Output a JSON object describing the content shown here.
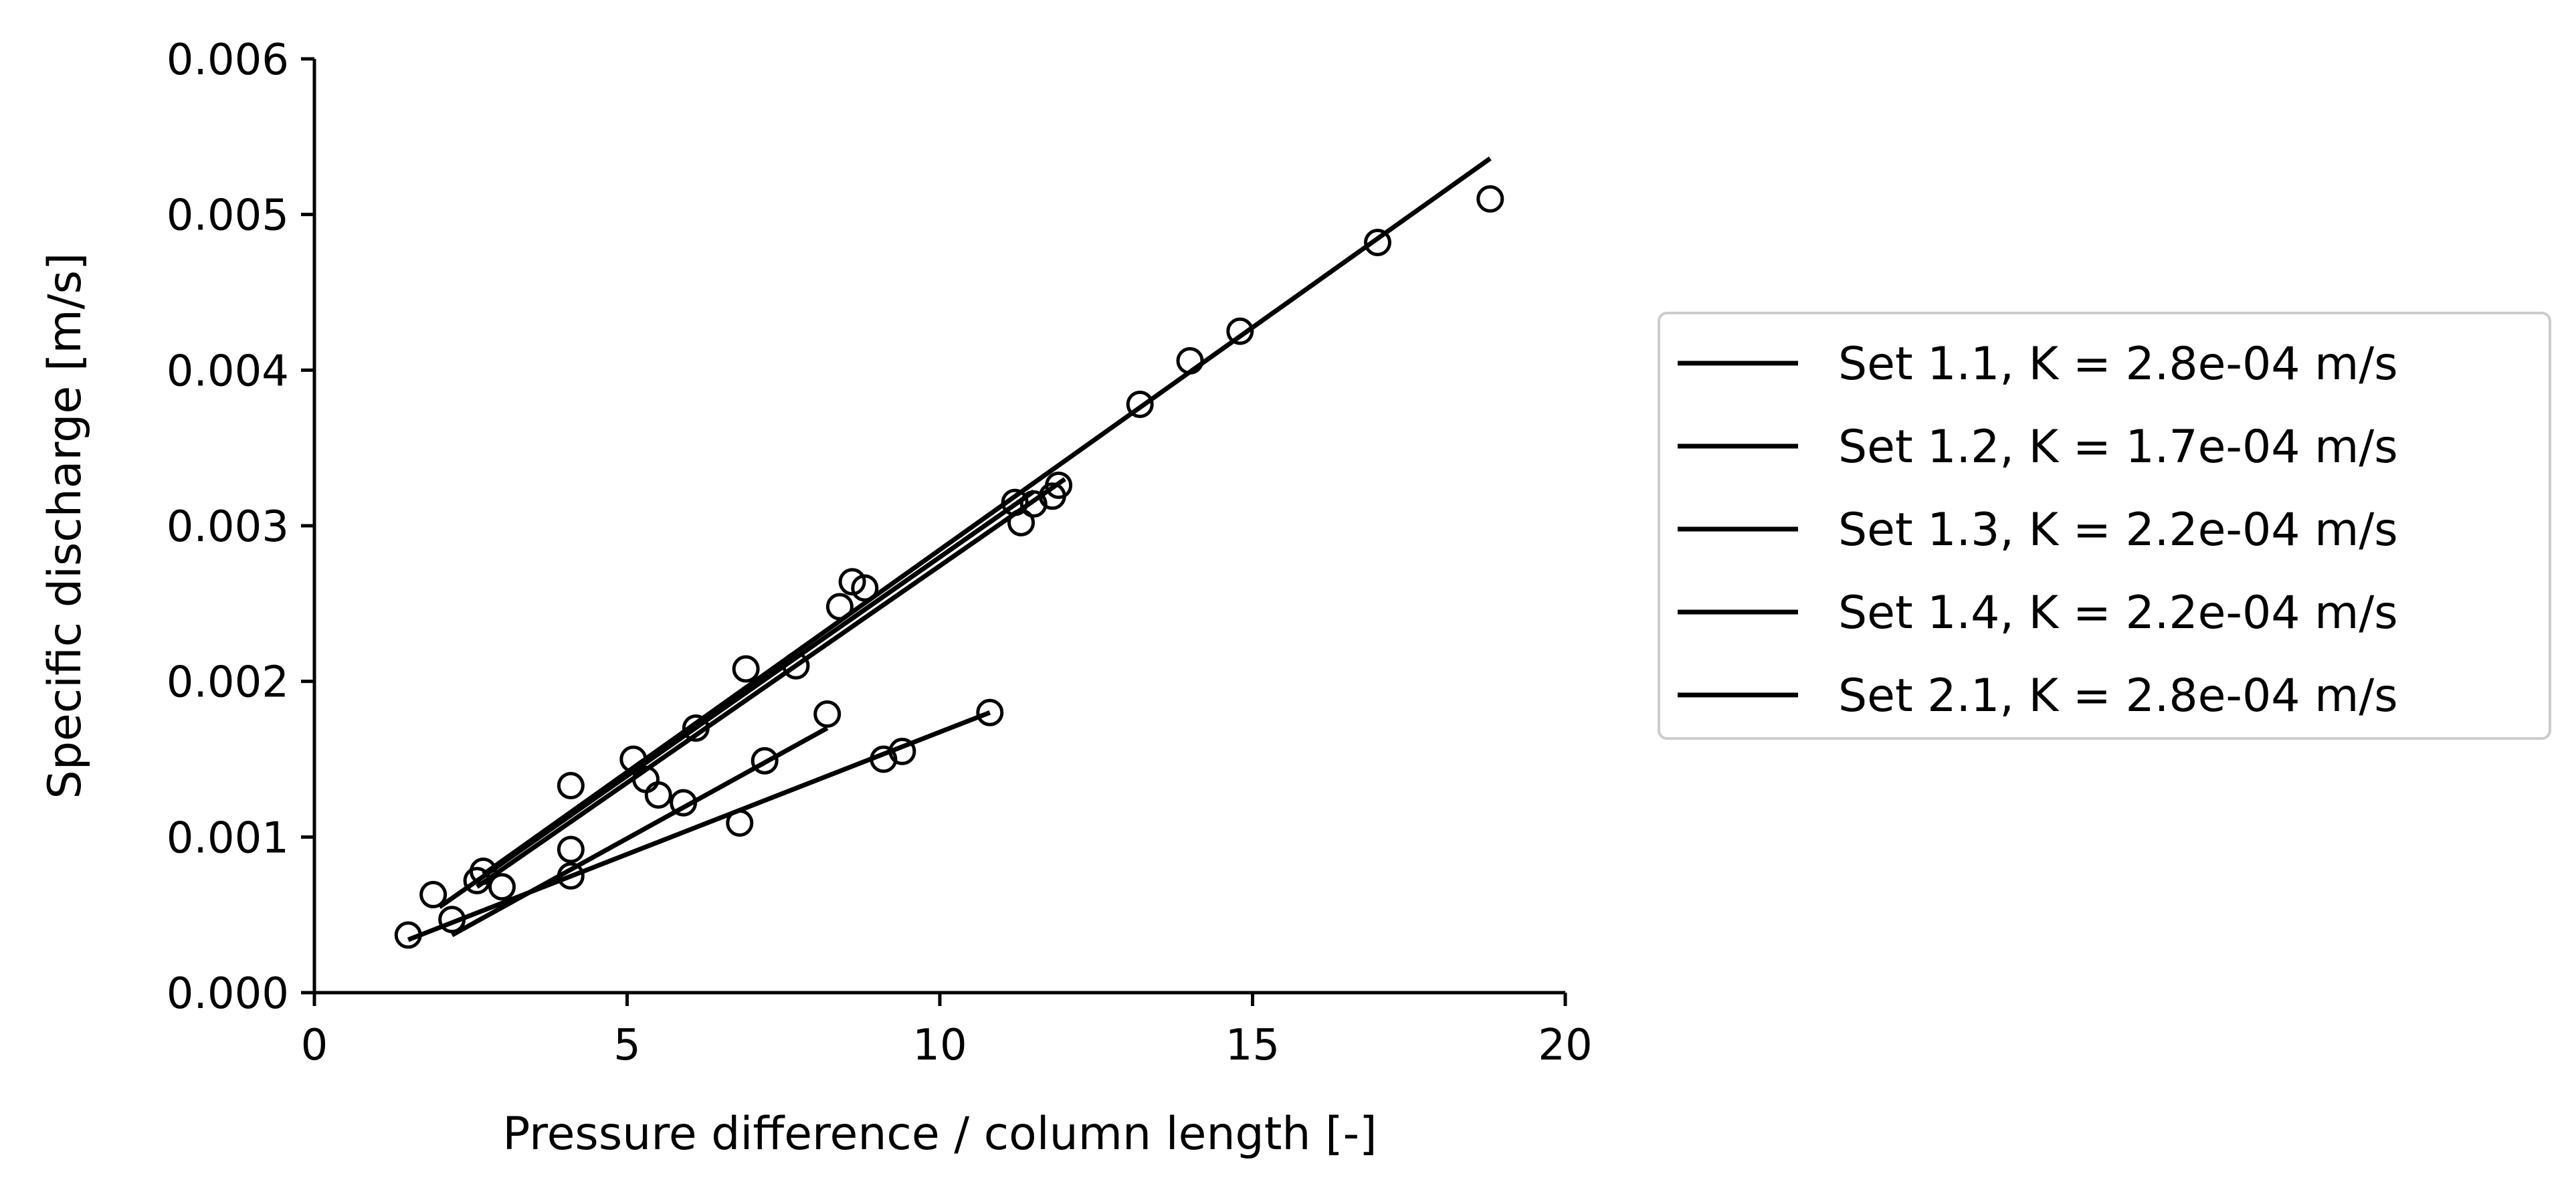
{
  "chart_data": {
    "type": "scatter",
    "xlabel": "Pressure difference / column length [-]",
    "ylabel": "Specific discharge [m/s]",
    "xlim": [
      0,
      20
    ],
    "ylim": [
      0,
      0.006
    ],
    "xticks": [
      "0",
      "5",
      "10",
      "15",
      "20"
    ],
    "yticks": [
      "0.000",
      "0.001",
      "0.002",
      "0.003",
      "0.004",
      "0.005",
      "0.006"
    ],
    "grid": false,
    "legend_position": "right",
    "color": "#000000",
    "series": [
      {
        "name": "Set 1.1, K = 2.8e-04 m/s",
        "fit": [
          [
            2.7,
            0.00076
          ],
          [
            18.8,
            0.00536
          ]
        ],
        "points": [
          [
            2.7,
            0.00078
          ],
          [
            6.1,
            0.0017
          ],
          [
            6.9,
            0.00208
          ],
          [
            8.6,
            0.00264
          ],
          [
            11.3,
            0.00302
          ],
          [
            13.2,
            0.00378
          ],
          [
            14.0,
            0.00406
          ],
          [
            14.8,
            0.00425
          ],
          [
            17.0,
            0.00482
          ],
          [
            18.8,
            0.0051
          ]
        ]
      },
      {
        "name": "Set 1.2, K = 1.7e-04 m/s",
        "fit": [
          [
            1.5,
            0.00034
          ],
          [
            10.8,
            0.0018
          ]
        ],
        "points": [
          [
            1.5,
            0.00037
          ],
          [
            4.1,
            0.00075
          ],
          [
            6.8,
            0.00109
          ],
          [
            9.1,
            0.0015
          ],
          [
            9.4,
            0.00155
          ],
          [
            10.8,
            0.0018
          ]
        ]
      },
      {
        "name": "Set 1.3, K = 2.2e-04 m/s",
        "fit": [
          [
            2.2,
            0.00037
          ],
          [
            8.2,
            0.0017
          ]
        ],
        "points": [
          [
            2.2,
            0.00047
          ],
          [
            4.1,
            0.00092
          ],
          [
            5.9,
            0.00122
          ],
          [
            7.2,
            0.00149
          ],
          [
            8.2,
            0.00179
          ]
        ]
      },
      {
        "name": "Set 1.4, K = 2.2e-04 m/s",
        "fit": [
          [
            2.0,
            0.00055
          ],
          [
            11.5,
            0.00322
          ]
        ],
        "points": [
          [
            1.9,
            0.00063
          ],
          [
            3.0,
            0.00068
          ],
          [
            5.3,
            0.00137
          ],
          [
            5.5,
            0.00127
          ],
          [
            8.4,
            0.00248
          ],
          [
            11.5,
            0.00314
          ],
          [
            11.8,
            0.00319
          ],
          [
            11.9,
            0.00326
          ]
        ]
      },
      {
        "name": "Set 2.1, K = 2.8e-04 m/s",
        "fit": [
          [
            2.6,
            0.00068
          ],
          [
            12.0,
            0.0033
          ]
        ],
        "points": [
          [
            2.6,
            0.00072
          ],
          [
            4.1,
            0.00133
          ],
          [
            5.1,
            0.0015
          ],
          [
            7.7,
            0.0021
          ],
          [
            8.8,
            0.0026
          ],
          [
            11.2,
            0.00315
          ]
        ]
      }
    ]
  }
}
